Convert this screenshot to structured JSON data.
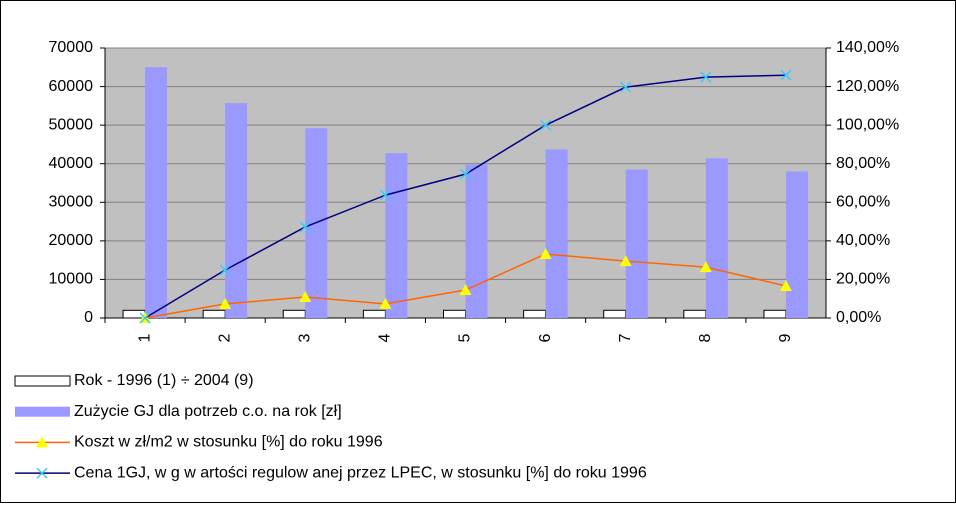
{
  "chart_data": {
    "type": "bar",
    "categories": [
      "1",
      "2",
      "3",
      "4",
      "5",
      "6",
      "7",
      "8",
      "9"
    ],
    "series": [
      {
        "name": "Rok - 1996 (1) ÷ 2004 (9)",
        "type": "bar",
        "color": "#ffffff",
        "values": [
          1996,
          1997,
          1998,
          1999,
          2000,
          2001,
          2002,
          2003,
          2004
        ]
      },
      {
        "name": "Zużycie GJ dla potrzeb c.o. na rok [zł]",
        "type": "bar",
        "color": "#9999ff",
        "values": [
          65000,
          55700,
          49200,
          42700,
          39700,
          43700,
          38500,
          41400,
          38000
        ]
      },
      {
        "name": "Koszt w  zł/m2  w  stosunku [%] do roku 1996",
        "type": "line",
        "axis": "y2",
        "color": "#ff6600",
        "marker": "triangle",
        "marker_color": "#ffff00",
        "values": [
          0,
          7.3,
          10.9,
          7.3,
          14.5,
          33.2,
          29.5,
          26.4,
          16.6
        ]
      },
      {
        "name": "Cena 1GJ, w g w artości regulow anej przez LPEC, w  stosunku [%] do roku 1996",
        "type": "line",
        "axis": "y2",
        "color": "#000080",
        "marker": "x",
        "marker_color": "#33ccff",
        "values": [
          0,
          24.9,
          47.2,
          63.7,
          74.6,
          100,
          119.7,
          124.9,
          125.9
        ]
      }
    ],
    "ylim": [
      0,
      70000
    ],
    "yticks": [
      0,
      10000,
      20000,
      30000,
      40000,
      50000,
      60000,
      70000
    ],
    "y2lim": [
      0,
      140
    ],
    "y2ticks": [
      {
        "value": 0,
        "label": "0,00%"
      },
      {
        "value": 20,
        "label": "20,00%"
      },
      {
        "value": 40,
        "label": "40,00%"
      },
      {
        "value": 60,
        "label": "60,00%"
      },
      {
        "value": 80,
        "label": "80,00%"
      },
      {
        "value": 100,
        "label": "100,00%"
      },
      {
        "value": 120,
        "label": "120,00%"
      },
      {
        "value": 140,
        "label": "140,00%"
      }
    ],
    "grid": true,
    "plot_background": "#c0c0c0",
    "legend": "bottom"
  }
}
